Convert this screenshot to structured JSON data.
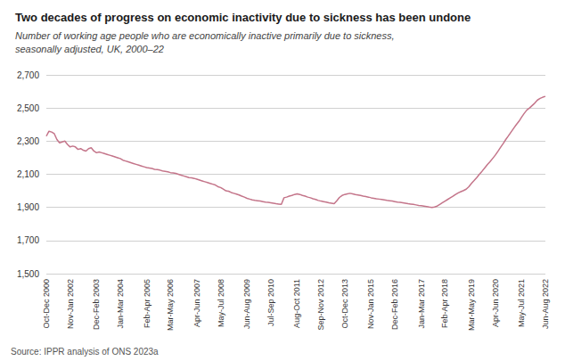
{
  "chart_data": {
    "type": "line",
    "title": "Two decades of progress on economic inactivity due to sickness has been undone",
    "subtitle": "Number of working age people who are economically inactive primarily due to sickness,\nseasonally adjusted, UK, 2000–22",
    "source": "Source: IPPR analysis of ONS 2023a",
    "color": "#c4758a",
    "grid": true,
    "ylim": [
      1500,
      2700
    ],
    "yticks": [
      {
        "value": 1500,
        "label": "1,500"
      },
      {
        "value": 1700,
        "label": "1,700"
      },
      {
        "value": 1900,
        "label": "1,900"
      },
      {
        "value": 2100,
        "label": "2,100"
      },
      {
        "value": 2300,
        "label": "2,300"
      },
      {
        "value": 2500,
        "label": "2,500"
      },
      {
        "value": 2700,
        "label": "2,700"
      }
    ],
    "categories": [
      "Oct-Dec 2000",
      null,
      null,
      null,
      null,
      null,
      null,
      null,
      null,
      "Nov-Jan 2002",
      null,
      null,
      null,
      null,
      null,
      null,
      null,
      null,
      null,
      "Dec-Feb 2003",
      null,
      null,
      null,
      null,
      null,
      null,
      null,
      null,
      "Jan-Mar 2004",
      null,
      null,
      null,
      null,
      null,
      null,
      null,
      null,
      null,
      "Feb-Apr 2005",
      null,
      null,
      null,
      null,
      null,
      null,
      null,
      null,
      "Mar-May 2006",
      null,
      null,
      null,
      null,
      null,
      null,
      null,
      null,
      null,
      "Apr-Jun 2007",
      null,
      null,
      null,
      null,
      null,
      null,
      null,
      null,
      "May-Jul 2008",
      null,
      null,
      null,
      null,
      null,
      null,
      null,
      null,
      null,
      "Jun-Aug 2009",
      null,
      null,
      null,
      null,
      null,
      null,
      null,
      null,
      "Jul-Sep 2010",
      null,
      null,
      null,
      null,
      null,
      null,
      null,
      null,
      null,
      "Aug-Oct 2011",
      null,
      null,
      null,
      null,
      null,
      null,
      null,
      null,
      "Sep-Nov 2012",
      null,
      null,
      null,
      null,
      null,
      null,
      null,
      null,
      "Oct-Dec 2013",
      null,
      null,
      null,
      null,
      null,
      null,
      null,
      null,
      null,
      "Nov-Jan 2015",
      null,
      null,
      null,
      null,
      null,
      null,
      null,
      null,
      "Dec-Feb 2016",
      null,
      null,
      null,
      null,
      null,
      null,
      null,
      null,
      null,
      "Jan-Mar 2017",
      null,
      null,
      null,
      null,
      null,
      null,
      null,
      null,
      "Feb-Apr 2018",
      null,
      null,
      null,
      null,
      null,
      null,
      null,
      null,
      null,
      "Mar-May 2019",
      null,
      null,
      null,
      null,
      null,
      null,
      null,
      null,
      "Apr-Jun 2020",
      null,
      null,
      null,
      null,
      null,
      null,
      null,
      null,
      null,
      "May-Jul 2021",
      null,
      null,
      null,
      null,
      null,
      null,
      null,
      null,
      "Jun-Aug 2022"
    ],
    "values": [
      2330,
      2360,
      2355,
      2345,
      2310,
      2290,
      2295,
      2300,
      2280,
      2265,
      2270,
      2265,
      2250,
      2255,
      2245,
      2240,
      2255,
      2260,
      2240,
      2230,
      2235,
      2230,
      2225,
      2220,
      2215,
      2210,
      2205,
      2200,
      2195,
      2185,
      2180,
      2175,
      2170,
      2165,
      2160,
      2155,
      2150,
      2145,
      2140,
      2138,
      2135,
      2130,
      2128,
      2125,
      2120,
      2118,
      2115,
      2110,
      2108,
      2105,
      2100,
      2095,
      2090,
      2085,
      2080,
      2078,
      2075,
      2070,
      2065,
      2060,
      2055,
      2050,
      2045,
      2040,
      2035,
      2025,
      2020,
      2010,
      2000,
      1998,
      1990,
      1985,
      1980,
      1975,
      1968,
      1962,
      1955,
      1950,
      1945,
      1942,
      1940,
      1938,
      1935,
      1932,
      1930,
      1928,
      1925,
      1922,
      1920,
      1918,
      1958,
      1962,
      1968,
      1972,
      1978,
      1982,
      1978,
      1972,
      1968,
      1962,
      1958,
      1952,
      1948,
      1942,
      1938,
      1935,
      1932,
      1928,
      1925,
      1922,
      1940,
      1960,
      1972,
      1978,
      1982,
      1985,
      1982,
      1978,
      1975,
      1972,
      1968,
      1965,
      1962,
      1958,
      1955,
      1952,
      1950,
      1948,
      1945,
      1942,
      1940,
      1938,
      1935,
      1932,
      1930,
      1928,
      1925,
      1922,
      1920,
      1918,
      1915,
      1912,
      1910,
      1908,
      1905,
      1902,
      1900,
      1902,
      1908,
      1918,
      1928,
      1938,
      1948,
      1958,
      1968,
      1978,
      1988,
      1995,
      2002,
      2010,
      2025,
      2045,
      2062,
      2080,
      2100,
      2118,
      2138,
      2158,
      2175,
      2195,
      2215,
      2238,
      2262,
      2285,
      2310,
      2332,
      2355,
      2378,
      2400,
      2420,
      2445,
      2468,
      2488,
      2500,
      2515,
      2530,
      2548,
      2558,
      2565,
      2570
    ]
  }
}
